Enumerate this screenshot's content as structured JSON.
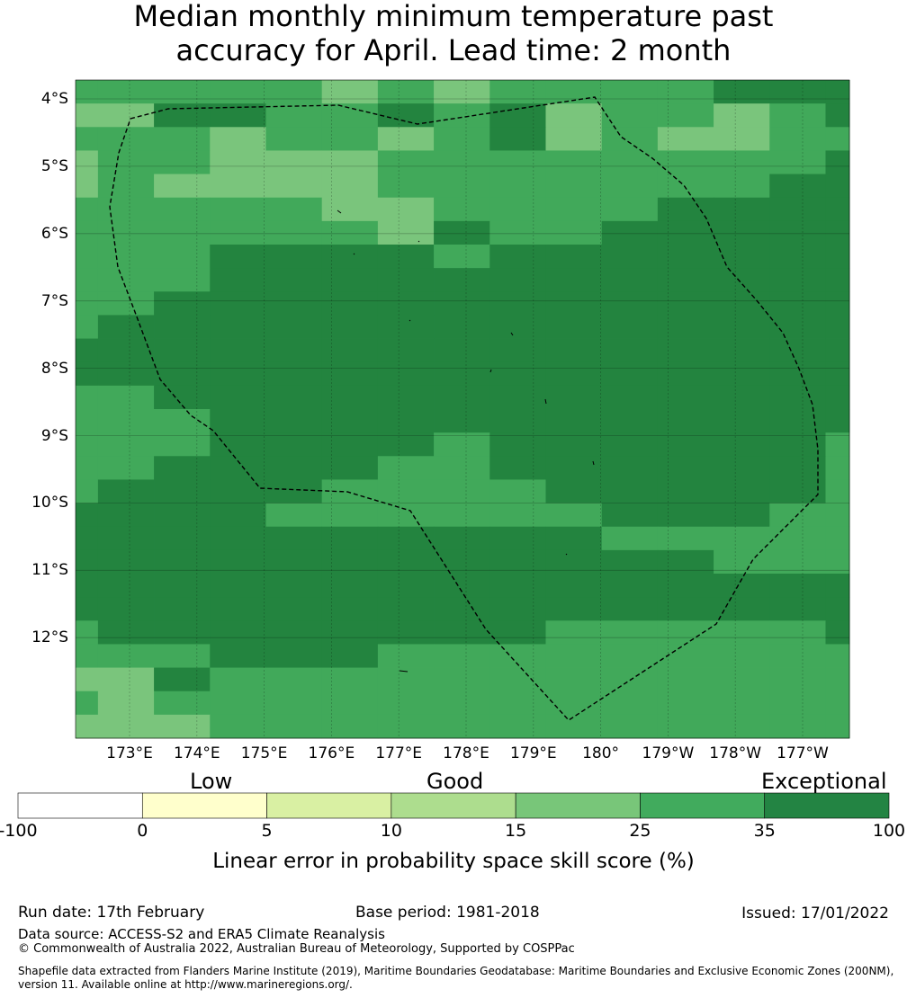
{
  "title": {
    "line1": "Median monthly minimum temperature past",
    "line2": "accuracy for April. Lead time: 2 month"
  },
  "map": {
    "lat_labels": [
      "4°S",
      "5°S",
      "6°S",
      "7°S",
      "8°S",
      "9°S",
      "10°S",
      "11°S",
      "12°S"
    ],
    "lon_labels": [
      "173°E",
      "174°E",
      "175°E",
      "176°E",
      "177°E",
      "178°E",
      "179°E",
      "180°",
      "179°W",
      "178°W",
      "177°W"
    ],
    "grid_legend": {
      "a": "#23843f",
      "b": "#41a95a",
      "c": "#7ac57c"
    },
    "grid": [
      "bbbbbcbcbbbbaaa",
      "ccaabbabacbbcbaa",
      "bbbcbbcbacbccbba",
      "cbbcccbbbbbbbbaa",
      "cbccccbbbbbbbaaa",
      "bbbbbccbbbbaaaaa",
      "bbbbbbcabbaaaaaa",
      "bbbaaaabaaaaaaaa",
      "bbbaaaaaaaaaaaaa",
      "bbaaaaaaaaaaaaaa",
      "baaaaaaaaaaaaaaa",
      "aaaaaaaaaaaaaaaa",
      "aaaaaaaaaaaaaaaa",
      "bbaaaaaaaaaaaaab",
      "bbbaaaaaaaaaaaab",
      "bbbaaaabaaaaaaba",
      "bbaaaabbaaaaaaba",
      "baaaabbbbaaaaaba",
      "aaaabbbbbbaaabba",
      "aaaaaaaaaabbbbba",
      "aaaaaaaaaaaabbba",
      "aaaaaaaaaaaaaaaa",
      "aaaaaaaaaaaaaaaa",
      "baaaaaaaabbbbbaa",
      "bbbaaabbbbbbbbba",
      "ccabbbbbbbbbbbba",
      "bcbbbbbbbbbbbbbb",
      "cccbbbbbbbbbbbbb"
    ]
  },
  "legend": {
    "categories": [
      "Low",
      "Good",
      "Exceptional"
    ],
    "ticks": [
      "-100",
      "0",
      "5",
      "10",
      "15",
      "25",
      "35",
      "100"
    ],
    "colors": [
      "#ffffff",
      "#ffffcc",
      "#d9f0a3",
      "#addd8e",
      "#78c679",
      "#41ab5d",
      "#238443"
    ],
    "title": "Linear error in probability space skill score (%)"
  },
  "footer": {
    "run_date": "Run date: 17th February",
    "base_period": "Base period: 1981-2018",
    "issued": "Issued: 17/01/2022",
    "data_source": "Data source: ACCESS-S2 and ERA5 Climate Reanalysis",
    "copyright": "© Commonwealth of Australia 2022, Australian Bureau of Meteorology, Supported by COSPPac",
    "shapefile1": "Shapefile data extracted from Flanders Marine Institute (2019), Maritime Boundaries Geodatabase: Maritime Boundaries and Exclusive Economic Zones (200NM),",
    "shapefile2": "version 11. Available online at http://www.marineregions.org/."
  }
}
